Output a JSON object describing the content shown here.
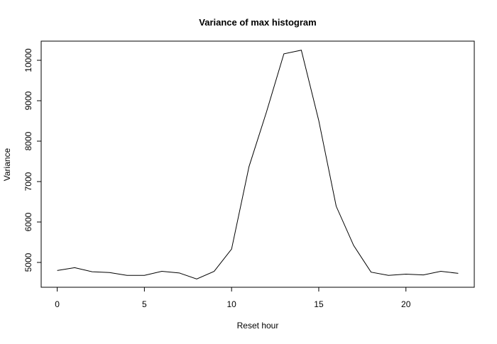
{
  "chart_data": {
    "type": "line",
    "title": "Variance of max histogram",
    "x_label": "Reset hour",
    "y_label": "Variance",
    "x": [
      0,
      1,
      2,
      3,
      4,
      5,
      6,
      7,
      8,
      9,
      10,
      11,
      12,
      13,
      14,
      15,
      16,
      17,
      18,
      19,
      20,
      21,
      22,
      23
    ],
    "series": [
      {
        "name": "Variance",
        "color": "#000000",
        "values": [
          4800,
          4870,
          4770,
          4750,
          4680,
          4680,
          4780,
          4740,
          4590,
          4780,
          5330,
          7370,
          8720,
          10160,
          10250,
          8510,
          6390,
          5420,
          4760,
          4680,
          4710,
          4690,
          4780,
          4730
        ]
      }
    ],
    "xlim": [
      -0.92,
      23.92
    ],
    "ylim": [
      4386,
      10474
    ],
    "xticks": [
      0,
      5,
      10,
      15,
      20
    ],
    "yticks": [
      5000,
      6000,
      7000,
      8000,
      9000,
      10000
    ]
  }
}
